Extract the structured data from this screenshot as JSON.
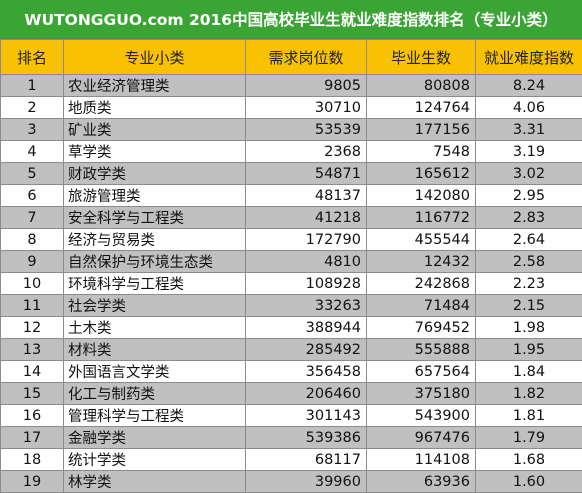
{
  "title": "WUTONGGUO.com 2016中国高校毕业生就业难度指数排名（专业小类）",
  "headers": [
    "排名",
    "专业小类",
    "需求岗位数",
    "毕业生数",
    "就业难度指数"
  ],
  "rows": [
    {
      "rank": "1",
      "name": "农业经济管理类",
      "demand": "9805",
      "grads": "80808",
      "index": "8.24"
    },
    {
      "rank": "2",
      "name": "地质类",
      "demand": "30710",
      "grads": "124764",
      "index": "4.06"
    },
    {
      "rank": "3",
      "name": "矿业类",
      "demand": "53539",
      "grads": "177156",
      "index": "3.31"
    },
    {
      "rank": "4",
      "name": "草学类",
      "demand": "2368",
      "grads": "7548",
      "index": "3.19"
    },
    {
      "rank": "5",
      "name": "财政学类",
      "demand": "54871",
      "grads": "165612",
      "index": "3.02"
    },
    {
      "rank": "6",
      "name": "旅游管理类",
      "demand": "48137",
      "grads": "142080",
      "index": "2.95"
    },
    {
      "rank": "7",
      "name": "安全科学与工程类",
      "demand": "41218",
      "grads": "116772",
      "index": "2.83"
    },
    {
      "rank": "8",
      "name": "经济与贸易类",
      "demand": "172790",
      "grads": "455544",
      "index": "2.64"
    },
    {
      "rank": "9",
      "name": "自然保护与环境生态类",
      "demand": "4810",
      "grads": "12432",
      "index": "2.58"
    },
    {
      "rank": "10",
      "name": "环境科学与工程类",
      "demand": "108928",
      "grads": "242868",
      "index": "2.23"
    },
    {
      "rank": "11",
      "name": "社会学类",
      "demand": "33263",
      "grads": "71484",
      "index": "2.15"
    },
    {
      "rank": "12",
      "name": "土木类",
      "demand": "388944",
      "grads": "769452",
      "index": "1.98"
    },
    {
      "rank": "13",
      "name": "材料类",
      "demand": "285492",
      "grads": "555888",
      "index": "1.95"
    },
    {
      "rank": "14",
      "name": "外国语言文学类",
      "demand": "356458",
      "grads": "657564",
      "index": "1.84"
    },
    {
      "rank": "15",
      "name": "化工与制药类",
      "demand": "206460",
      "grads": "375180",
      "index": "1.82"
    },
    {
      "rank": "16",
      "name": "管理科学与工程类",
      "demand": "301143",
      "grads": "543900",
      "index": "1.81"
    },
    {
      "rank": "17",
      "name": "金融学类",
      "demand": "539386",
      "grads": "967476",
      "index": "1.79"
    },
    {
      "rank": "18",
      "name": "统计学类",
      "demand": "68117",
      "grads": "114108",
      "index": "1.68"
    },
    {
      "rank": "19",
      "name": "林学类",
      "demand": "39960",
      "grads": "63936",
      "index": "1.60"
    }
  ]
}
